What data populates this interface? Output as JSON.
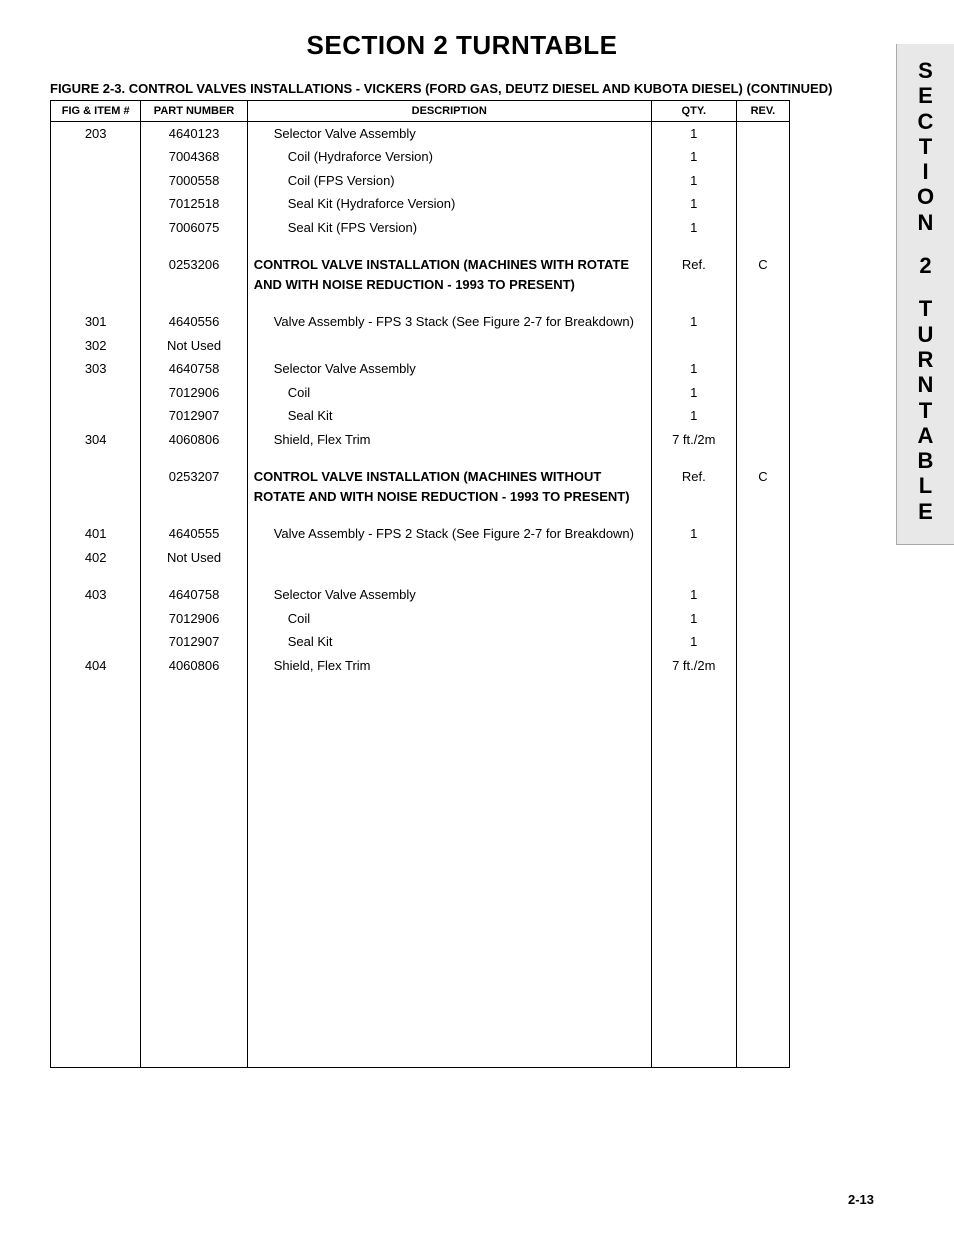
{
  "page_title": "SECTION 2   TURNTABLE",
  "figure_caption": "FIGURE 2-3.  CONTROL VALVES INSTALLATIONS - VICKERS (FORD GAS, DEUTZ DIESEL AND KUBOTA DIESEL) (CONTINUED)",
  "headers": {
    "fig": "FIG & ITEM #",
    "part": "PART NUMBER",
    "desc": "DESCRIPTION",
    "qty": "QTY.",
    "rev": "REV."
  },
  "rows": [
    {
      "fig": "203",
      "part": "4640123",
      "desc": "Selector Valve Assembly",
      "qty": "1",
      "rev": "",
      "indent": 1
    },
    {
      "fig": "",
      "part": "7004368",
      "desc": "Coil (Hydraforce Version)",
      "qty": "1",
      "rev": "",
      "indent": 2
    },
    {
      "fig": "",
      "part": "7000558",
      "desc": "Coil (FPS Version)",
      "qty": "1",
      "rev": "",
      "indent": 2
    },
    {
      "fig": "",
      "part": "7012518",
      "desc": "Seal Kit (Hydraforce Version)",
      "qty": "1",
      "rev": "",
      "indent": 2
    },
    {
      "fig": "",
      "part": "7006075",
      "desc": "Seal Kit (FPS Version)",
      "qty": "1",
      "rev": "",
      "indent": 2
    },
    {
      "spacer": true
    },
    {
      "fig": "",
      "part": "0253206",
      "desc": "CONTROL VALVE INSTALLATION (MACHINES WITH ROTATE AND WITH NOISE REDUCTION - 1993 TO PRESENT)",
      "qty": "Ref.",
      "rev": "C",
      "bold": true,
      "indent": 0
    },
    {
      "spacer": true
    },
    {
      "fig": "301",
      "part": "4640556",
      "desc": "Valve Assembly - FPS 3 Stack (See Figure 2-7 for Breakdown)",
      "qty": "1",
      "rev": "",
      "indent": 1
    },
    {
      "fig": "302",
      "part": "Not Used",
      "desc": "",
      "qty": "",
      "rev": "",
      "indent": 0
    },
    {
      "fig": "303",
      "part": "4640758",
      "desc": "Selector Valve Assembly",
      "qty": "1",
      "rev": "",
      "indent": 1
    },
    {
      "fig": "",
      "part": "7012906",
      "desc": "Coil",
      "qty": "1",
      "rev": "",
      "indent": 2
    },
    {
      "fig": "",
      "part": "7012907",
      "desc": "Seal Kit",
      "qty": "1",
      "rev": "",
      "indent": 2
    },
    {
      "fig": "304",
      "part": "4060806",
      "desc": "Shield, Flex Trim",
      "qty": "7 ft./2m",
      "rev": "",
      "indent": 1
    },
    {
      "spacer": true
    },
    {
      "fig": "",
      "part": "0253207",
      "desc": "CONTROL VALVE INSTALLATION (MACHINES WITHOUT ROTATE AND WITH NOISE REDUCTION - 1993 TO PRESENT)",
      "qty": "Ref.",
      "rev": "C",
      "bold": true,
      "indent": 0
    },
    {
      "spacer": true
    },
    {
      "fig": "401",
      "part": "4640555",
      "desc": "Valve Assembly - FPS 2 Stack (See Figure 2-7 for Breakdown)",
      "qty": "1",
      "rev": "",
      "indent": 1
    },
    {
      "fig": "402",
      "part": "Not Used",
      "desc": "",
      "qty": "",
      "rev": "",
      "indent": 0
    },
    {
      "spacer": true
    },
    {
      "fig": "403",
      "part": "4640758",
      "desc": "Selector Valve Assembly",
      "qty": "1",
      "rev": "",
      "indent": 1
    },
    {
      "fig": "",
      "part": "7012906",
      "desc": "Coil",
      "qty": "1",
      "rev": "",
      "indent": 2
    },
    {
      "fig": "",
      "part": "7012907",
      "desc": "Seal Kit",
      "qty": "1",
      "rev": "",
      "indent": 2
    },
    {
      "fig": "404",
      "part": "4060806",
      "desc": "Shield, Flex Trim",
      "qty": "7 ft./2m",
      "rev": "",
      "indent": 1
    }
  ],
  "side_tab": [
    "S",
    "E",
    "C",
    "T",
    "I",
    "O",
    "N",
    "",
    "2",
    "",
    "T",
    "U",
    "R",
    "N",
    "T",
    "A",
    "B",
    "L",
    "E"
  ],
  "page_number": "2-13"
}
